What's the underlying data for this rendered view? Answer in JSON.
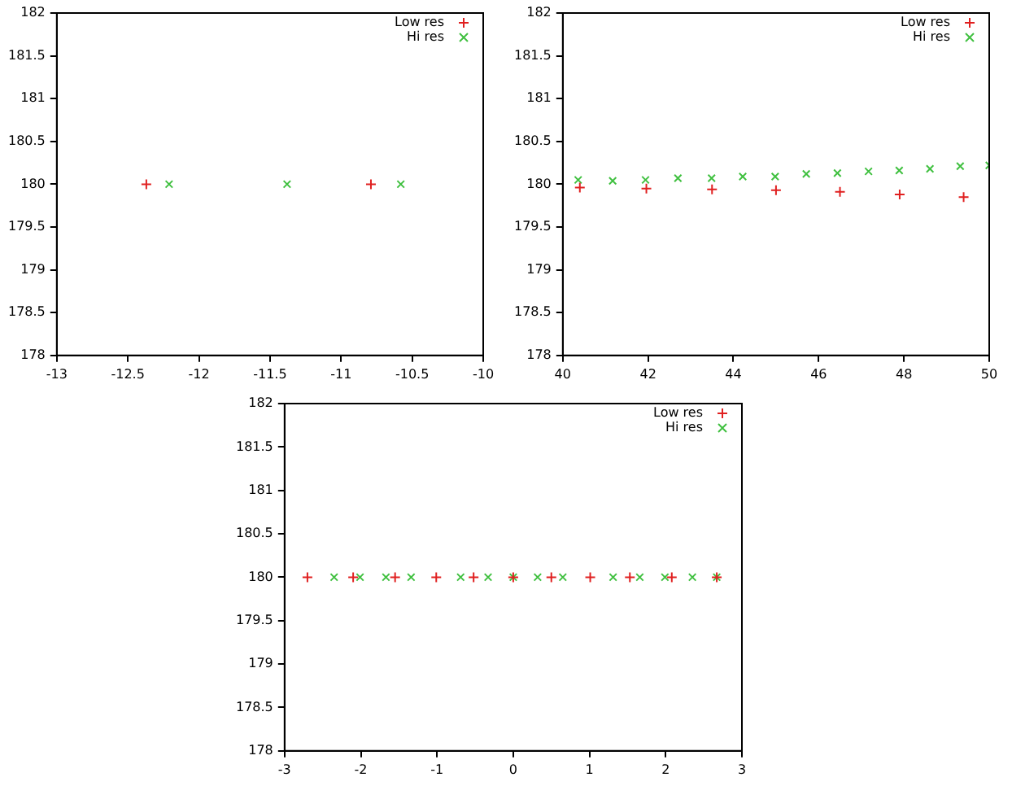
{
  "chart_data": [
    {
      "type": "scatter",
      "legend": "top right",
      "grid": false,
      "xlim": [
        -13,
        -10
      ],
      "xticks": [
        -13,
        -12.5,
        -12,
        -11.5,
        -11,
        -10.5,
        -10
      ],
      "ylim": [
        178,
        182
      ],
      "yticks": [
        178,
        178.5,
        179,
        179.5,
        180,
        180.5,
        181,
        181.5,
        182
      ],
      "series": [
        {
          "name": "Low res",
          "color": "#e02020",
          "marker": "cross",
          "x": [
            -12.37,
            -10.79
          ],
          "values": [
            180,
            180
          ]
        },
        {
          "name": "Hi res",
          "color": "#40c040",
          "marker": "x",
          "x": [
            -12.21,
            -11.38,
            -10.58
          ],
          "values": [
            180,
            180,
            180
          ]
        }
      ]
    },
    {
      "type": "scatter",
      "legend": "top right",
      "grid": false,
      "xlim": [
        40,
        50
      ],
      "xticks": [
        40,
        42,
        44,
        46,
        48,
        50
      ],
      "ylim": [
        178,
        182
      ],
      "yticks": [
        178,
        178.5,
        179,
        179.5,
        180,
        180.5,
        181,
        181.5,
        182
      ],
      "series": [
        {
          "name": "Low res",
          "color": "#e02020",
          "marker": "cross",
          "x": [
            40.4,
            41.96,
            43.5,
            45.0,
            46.5,
            47.9,
            49.4
          ],
          "values": [
            179.96,
            179.95,
            179.94,
            179.93,
            179.91,
            179.88,
            179.85
          ]
        },
        {
          "name": "Hi res",
          "color": "#40c040",
          "marker": "x",
          "x": [
            40.36,
            41.17,
            41.94,
            42.7,
            43.49,
            44.22,
            44.98,
            45.71,
            46.44,
            47.17,
            47.89,
            48.61,
            49.32,
            50.0
          ],
          "values": [
            180.05,
            180.04,
            180.05,
            180.07,
            180.07,
            180.09,
            180.09,
            180.12,
            180.13,
            180.15,
            180.16,
            180.18,
            180.21,
            180.22
          ]
        }
      ]
    },
    {
      "type": "scatter",
      "legend": "top right",
      "grid": false,
      "xlim": [
        -3,
        3
      ],
      "xticks": [
        -3,
        -2,
        -1,
        0,
        1,
        2,
        3
      ],
      "ylim": [
        178,
        182
      ],
      "yticks": [
        178,
        178.5,
        179,
        179.5,
        180,
        180.5,
        181,
        181.5,
        182
      ],
      "series": [
        {
          "name": "Low res",
          "color": "#e02020",
          "marker": "cross",
          "x": [
            -2.7,
            -2.1,
            -1.55,
            -1.01,
            -0.52,
            0.0,
            0.5,
            1.01,
            1.53,
            2.08,
            2.67
          ],
          "values": [
            180,
            180,
            180,
            180,
            180,
            180,
            180,
            180,
            180,
            180,
            180
          ]
        },
        {
          "name": "Hi res",
          "color": "#40c040",
          "marker": "x",
          "x": [
            -2.35,
            -2.01,
            -1.67,
            -1.34,
            -0.69,
            -0.33,
            0,
            0.32,
            0.65,
            1.31,
            1.66,
            1.99,
            2.35,
            2.67
          ],
          "values": [
            180,
            180,
            180,
            180,
            180,
            180,
            180,
            180,
            180,
            180,
            180,
            180,
            180,
            180
          ]
        }
      ]
    }
  ]
}
